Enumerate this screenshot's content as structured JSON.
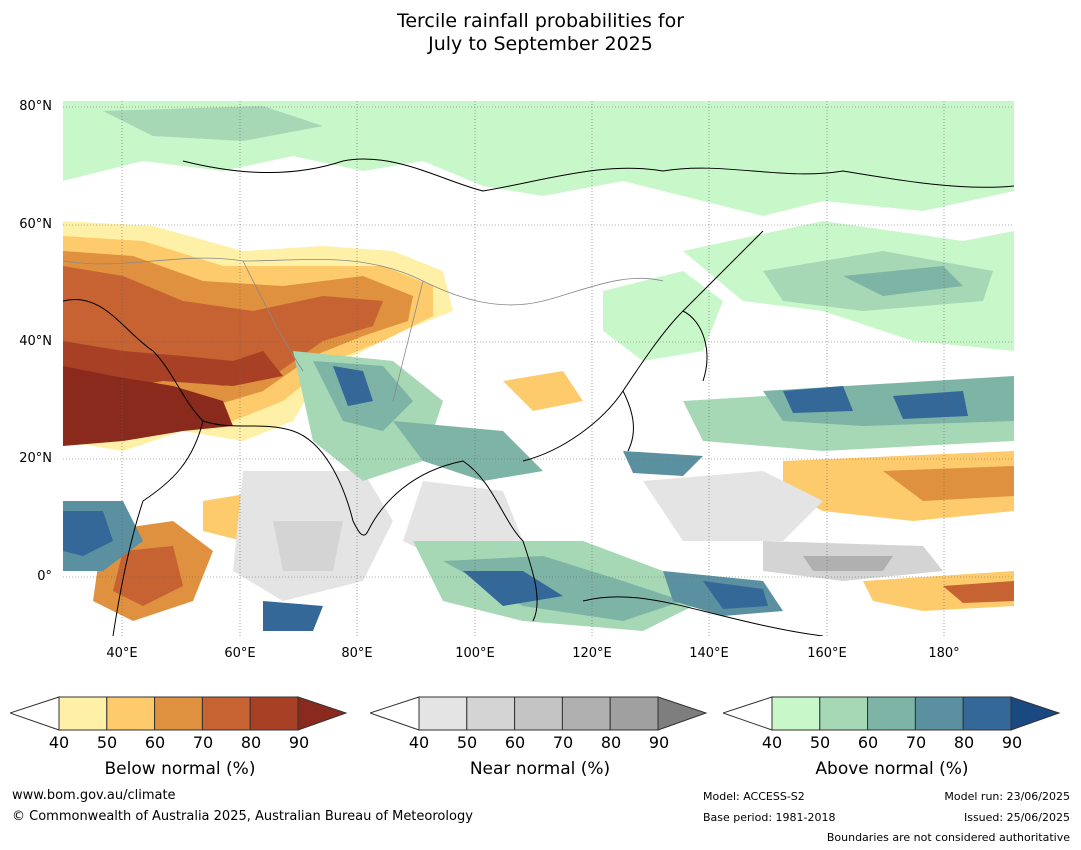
{
  "title": {
    "line1": "Tercile rainfall probabilities for",
    "line2": "July to September 2025"
  },
  "lat_labels": [
    "80°N",
    "60°N",
    "40°N",
    "20°N",
    "0°"
  ],
  "lon_labels": [
    "40°E",
    "60°E",
    "80°E",
    "100°E",
    "120°E",
    "140°E",
    "160°E",
    "180°"
  ],
  "colorbars": [
    {
      "label": "Below normal (%)",
      "ticks": [
        "40",
        "50",
        "60",
        "70",
        "80",
        "90"
      ],
      "colors": [
        "#fff0a8",
        "#fdcb6b",
        "#df913f",
        "#c76232",
        "#a84026",
        "#8a2a1c"
      ]
    },
    {
      "label": "Near normal (%)",
      "ticks": [
        "40",
        "50",
        "60",
        "70",
        "80",
        "90"
      ],
      "colors": [
        "#e4e4e4",
        "#d4d4d4",
        "#c4c4c4",
        "#b0b0b0",
        "#a0a0a0",
        "#7e7e7e"
      ]
    },
    {
      "label": "Above normal (%)",
      "ticks": [
        "40",
        "50",
        "60",
        "70",
        "80",
        "90"
      ],
      "colors": [
        "#c8f7c9",
        "#a6d8b6",
        "#7db4a5",
        "#5a90a0",
        "#336899",
        "#1a4880"
      ]
    }
  ],
  "footer": {
    "website": "www.bom.gov.au/climate",
    "copyright": "© Commonwealth of Australia 2025, Australian Bureau of Meteorology",
    "model": "Model: ACCESS-S2",
    "base_period": "Base period: 1981-2018",
    "model_run": "Model run: 23/06/2025",
    "issued": "Issued: 25/06/2025",
    "disclaimer": "Boundaries are not considered authoritative"
  }
}
